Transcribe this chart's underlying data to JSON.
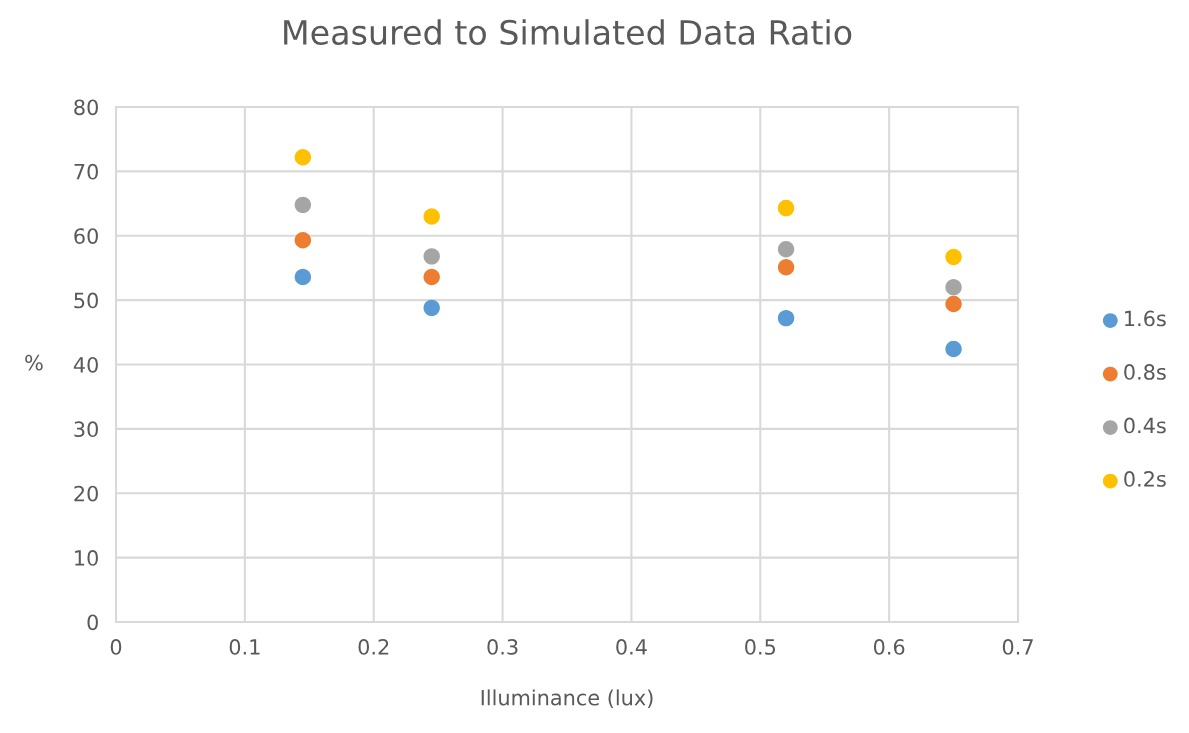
{
  "chart_data": {
    "type": "scatter",
    "title": "Measured to Simulated Data Ratio",
    "xlabel": "Illuminance (lux)",
    "ylabel": "%",
    "x": [
      0.145,
      0.245,
      0.52,
      0.65
    ],
    "series": [
      {
        "name": "1.6s",
        "color": "#5b9bd5",
        "values": [
          53.6,
          48.8,
          47.2,
          42.4
        ]
      },
      {
        "name": "0.8s",
        "color": "#ed7d31",
        "values": [
          59.3,
          53.6,
          55.1,
          49.4
        ]
      },
      {
        "name": "0.4s",
        "color": "#a5a5a5",
        "values": [
          64.8,
          56.8,
          57.9,
          52.0
        ]
      },
      {
        "name": "0.2s",
        "color": "#ffc000",
        "values": [
          72.2,
          63.0,
          64.3,
          56.7
        ]
      }
    ],
    "xlim": [
      0,
      0.7
    ],
    "xticks": [
      0,
      0.1,
      0.2,
      0.3,
      0.4,
      0.5,
      0.6,
      0.7
    ],
    "ylim": [
      0,
      80
    ],
    "yticks": [
      0,
      10,
      20,
      30,
      40,
      50,
      60,
      70,
      80
    ],
    "grid": true,
    "legend": "right",
    "marker": "circle"
  }
}
